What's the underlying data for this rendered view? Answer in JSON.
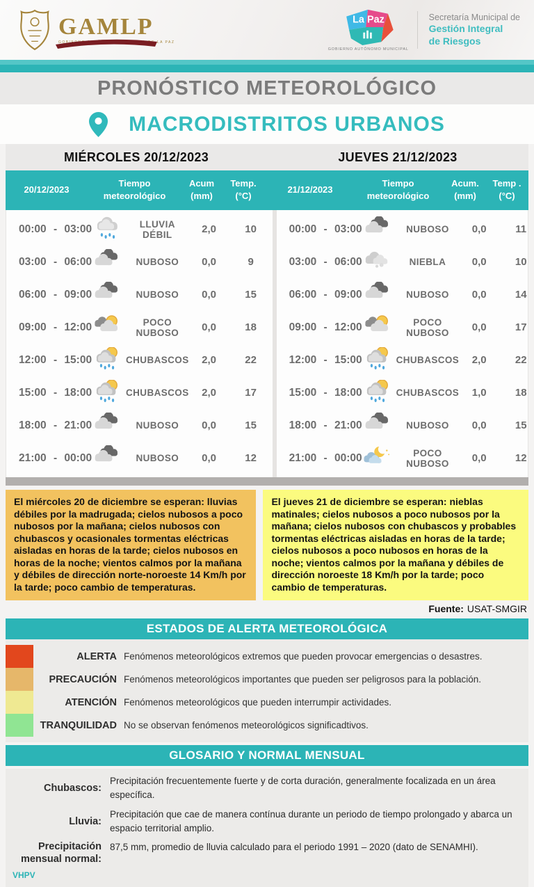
{
  "header": {
    "gamlp": {
      "name": "GAMLP",
      "subtitle": "GOBIERNO AUTÓNOMO MUNICIPAL DE LA PAZ"
    },
    "lapaz": {
      "name": "La Paz",
      "subtitle": "GOBIERNO AUTÓNOMO MUNICIPAL"
    },
    "secretaria": {
      "line1": "Secretaría Municipal de",
      "line2": "Gestión Integral",
      "line3": "de Riesgos"
    }
  },
  "title": "PRONÓSTICO METEOROLÓGICO",
  "subtitle": "MACRODISTRITOS URBANOS",
  "colors": {
    "accent_teal": "#2cb4b6",
    "summary_orange": "#f2c25f",
    "summary_yellow": "#fbfb7f",
    "alert_red": "#e2471d",
    "alert_tan": "#e6b76a",
    "alert_yellow": "#efe992",
    "alert_green": "#90e593"
  },
  "tables": [
    {
      "day_title": "MIÉRCOLES 20/12/2023",
      "columns": [
        "20/12/2023",
        "Tiempo meteorológico",
        "Acum\n(mm)",
        "Temp.\n(°C)"
      ],
      "rows": [
        {
          "time": "00:00 - 03:00",
          "icon": "rain-cloud-icon",
          "condition": "LLUVIA DÉBIL",
          "acum": "2,0",
          "temp": "10"
        },
        {
          "time": "03:00 - 06:00",
          "icon": "cloudy-icon",
          "condition": "NUBOSO",
          "acum": "0,0",
          "temp": "9"
        },
        {
          "time": "06:00 - 09:00",
          "icon": "cloudy-icon",
          "condition": "NUBOSO",
          "acum": "0,0",
          "temp": "15"
        },
        {
          "time": "09:00 - 12:00",
          "icon": "partly-cloudy-icon",
          "condition": "POCO NUBOSO",
          "acum": "0,0",
          "temp": "18"
        },
        {
          "time": "12:00 - 15:00",
          "icon": "showers-icon",
          "condition": "CHUBASCOS",
          "acum": "2,0",
          "temp": "22"
        },
        {
          "time": "15:00 - 18:00",
          "icon": "showers-icon",
          "condition": "CHUBASCOS",
          "acum": "2,0",
          "temp": "17"
        },
        {
          "time": "18:00 - 21:00",
          "icon": "cloudy-icon",
          "condition": "NUBOSO",
          "acum": "0,0",
          "temp": "15"
        },
        {
          "time": "21:00 - 00:00",
          "icon": "cloudy-icon",
          "condition": "NUBOSO",
          "acum": "0,0",
          "temp": "12"
        }
      ]
    },
    {
      "day_title": "JUEVES 21/12/2023",
      "columns": [
        "21/12/2023",
        "Tiempo meteorológico",
        "Acum.\n(mm)",
        "Temp .\n(°C)"
      ],
      "rows": [
        {
          "time": "00:00 - 03:00",
          "icon": "cloudy-icon",
          "condition": "NUBOSO",
          "acum": "0,0",
          "temp": "11"
        },
        {
          "time": "03:00 - 06:00",
          "icon": "fog-icon",
          "condition": "NIEBLA",
          "acum": "0,0",
          "temp": "10"
        },
        {
          "time": "06:00 - 09:00",
          "icon": "cloudy-icon",
          "condition": "NUBOSO",
          "acum": "0,0",
          "temp": "14"
        },
        {
          "time": "09:00 - 12:00",
          "icon": "partly-cloudy-icon",
          "condition": "POCO NUBOSO",
          "acum": "0,0",
          "temp": "17"
        },
        {
          "time": "12:00 - 15:00",
          "icon": "showers-icon",
          "condition": "CHUBASCOS",
          "acum": "2,0",
          "temp": "22"
        },
        {
          "time": "15:00 - 18:00",
          "icon": "showers-icon",
          "condition": "CHUBASCOS",
          "acum": "1,0",
          "temp": "18"
        },
        {
          "time": "18:00 - 21:00",
          "icon": "cloudy-icon",
          "condition": "NUBOSO",
          "acum": "0,0",
          "temp": "15"
        },
        {
          "time": "21:00 - 00:00",
          "icon": "night-cloud-icon",
          "condition": "POCO NUBOSO",
          "acum": "0,0",
          "temp": "12"
        }
      ]
    }
  ],
  "summaries": [
    {
      "bg": "#f2c25f",
      "text": "El miércoles 20 de diciembre se esperan: lluvias débiles por la madrugada; cielos nubosos a poco nubosos por la mañana; cielos nubosos con chubascos y ocasionales tormentas eléctricas aisladas en horas de la tarde; cielos nubosos en horas de la noche; vientos calmos por la mañana y débiles de dirección norte-noroeste 14 Km/h por la tarde; poco cambio de temperaturas."
    },
    {
      "bg": "#fbfb7f",
      "text": "El jueves 21 de diciembre se esperan: nieblas matinales; cielos nubosos a poco nubosos por la mañana; cielos nubosos con chubascos y probables tormentas eléctricas aisladas en horas de la tarde; cielos nubosos a poco nubosos en horas de la noche; vientos calmos por la mañana y débiles de dirección noroeste 18 Km/h por la tarde; poco cambio de temperaturas."
    }
  ],
  "fuente": {
    "label": "Fuente:",
    "value": "USAT-SMGIR"
  },
  "alerts": {
    "title": "ESTADOS DE ALERTA METEOROLÓGICA",
    "levels": [
      {
        "name": "ALERTA",
        "color": "#e2471d",
        "description": "Fenómenos meteorológicos extremos que pueden provocar emergencias o desastres."
      },
      {
        "name": "PRECAUCIÓN",
        "color": "#e6b76a",
        "description": "Fenómenos meteorológicos importantes que pueden ser peligrosos para la población."
      },
      {
        "name": "ATENCIÓN",
        "color": "#efe992",
        "description": "Fenómenos meteorológicos que pueden interrumpir actividades."
      },
      {
        "name": "TRANQUILIDAD",
        "color": "#90e593",
        "description": "No se observan fenómenos meteorológicos significadtivos."
      }
    ]
  },
  "glossary": {
    "title": "GLOSARIO Y NORMAL MENSUAL",
    "entries": [
      {
        "term": "Chubascos:",
        "definition": "Precipitación frecuentemente fuerte y de corta duración, generalmente focalizada en un área específica."
      },
      {
        "term": "Lluvia:",
        "definition": "Precipitación que cae de manera contínua durante un periodo de tiempo prolongado y abarca un espacio territorial amplio."
      },
      {
        "term": "Precipitación mensual normal:",
        "definition": "87,5 mm, promedio de lluvia calculado para el periodo 1991 – 2020 (dato de SENAMHI)."
      }
    ]
  },
  "footer": {
    "initials": "VHPV"
  }
}
